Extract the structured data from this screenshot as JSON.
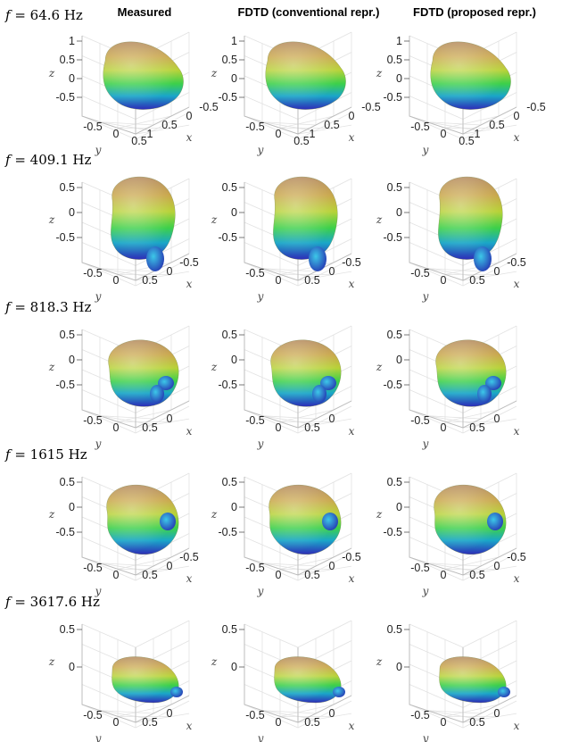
{
  "chart_data": {
    "type": "3d-surface-grid",
    "columns": [
      "Measured",
      "FDTD (conventional repr.)",
      "FDTD (proposed repr.)"
    ],
    "axes": {
      "x_label": "x",
      "y_label": "y",
      "z_label": "z",
      "grid": true
    },
    "rows": [
      {
        "label_prefix": "f = ",
        "frequency": "64.6",
        "unit": "Hz",
        "z_ticks": [
          "1",
          "0.5",
          "0",
          "-0.5"
        ],
        "y_ticks": [
          "-0.5",
          "0",
          "0.5"
        ],
        "x_ticks": [
          "-0.5",
          "0",
          "0.5",
          "1"
        ],
        "y_ticks_alt": [
          "-0.5",
          "0",
          "0.5"
        ],
        "x_ticks_alt": [
          "-0.5",
          "0",
          "0.5",
          "1"
        ]
      },
      {
        "label_prefix": "f = ",
        "frequency": "409.1",
        "unit": "Hz",
        "z_ticks": [
          "0.5",
          "0",
          "-0.5"
        ],
        "y_ticks": [
          "-0.5",
          "0"
        ],
        "x_ticks": [
          "-0.5",
          "0",
          "0.5"
        ],
        "y_ticks_alt": [
          "-0.5",
          "0"
        ],
        "x_ticks_alt": [
          "-0.5",
          "0",
          "0.5"
        ]
      },
      {
        "label_prefix": "f = ",
        "frequency": "818.3",
        "unit": "Hz",
        "z_ticks": [
          "0.5",
          "0",
          "-0.5"
        ],
        "y_ticks": [
          "-0.5",
          "0"
        ],
        "x_ticks": [
          "0",
          "0.5"
        ],
        "y_ticks_alt": [
          "-0.5",
          "0"
        ],
        "x_ticks_alt": [
          "0",
          "0.5"
        ]
      },
      {
        "label_prefix": "f = ",
        "frequency": "1615",
        "unit": "Hz",
        "z_ticks": [
          "0.5",
          "0",
          "-0.5"
        ],
        "y_ticks": [
          "-0.5",
          "0"
        ],
        "x_ticks": [
          "-0.5",
          "0",
          "0.5"
        ],
        "y_ticks_alt": [
          "-0.5",
          "0"
        ],
        "x_ticks_alt": [
          "-0.5",
          "0",
          "0.5"
        ]
      },
      {
        "label_prefix": "f = ",
        "frequency": "3617.6",
        "unit": "Hz",
        "z_ticks": [
          "0.5",
          "0"
        ],
        "y_ticks": [
          "-0.5",
          "0"
        ],
        "x_ticks": [
          "0",
          "0.5"
        ],
        "y_ticks_alt": [
          "-0.5",
          "0"
        ],
        "x_ticks_alt": [
          "0",
          "0.5"
        ]
      }
    ],
    "colormap": [
      "#3a1fa8",
      "#1f5fe0",
      "#1fb0c8",
      "#3cd23c",
      "#c8d21e",
      "#d8a040",
      "#b0806a"
    ]
  }
}
